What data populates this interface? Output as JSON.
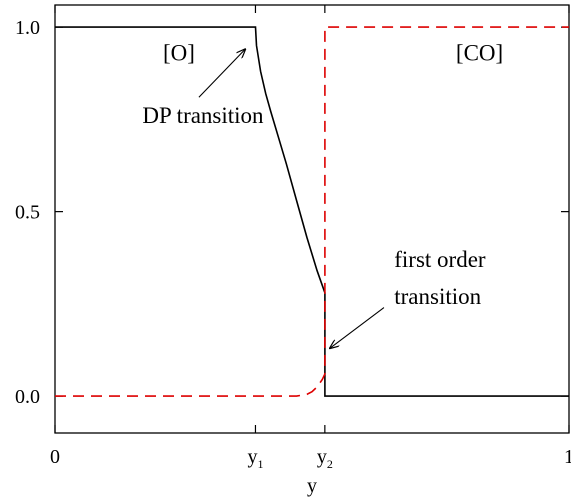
{
  "chart_data": {
    "type": "line",
    "xlabel": "y",
    "ylabel": "",
    "xlim": [
      0,
      1
    ],
    "ylim": [
      -0.1,
      1.06
    ],
    "x_ticks": [
      {
        "value": 0,
        "label": "0"
      },
      {
        "value": 0.39,
        "base": "y",
        "sub": "1"
      },
      {
        "value": 0.525,
        "base": "y",
        "sub": "2"
      },
      {
        "value": 1,
        "label": "1"
      }
    ],
    "y_ticks": [
      {
        "value": 0.0,
        "label": "0.0"
      },
      {
        "value": 0.5,
        "label": "0.5"
      },
      {
        "value": 1.0,
        "label": "1.0"
      }
    ],
    "series": [
      {
        "color": "#000000",
        "dash": "solid",
        "points": [
          [
            0,
            1.0
          ],
          [
            0.39,
            1.0
          ],
          [
            0.392,
            0.95
          ],
          [
            0.4,
            0.88
          ],
          [
            0.41,
            0.82
          ],
          [
            0.42,
            0.77
          ],
          [
            0.435,
            0.7
          ],
          [
            0.45,
            0.63
          ],
          [
            0.47,
            0.53
          ],
          [
            0.49,
            0.43
          ],
          [
            0.51,
            0.34
          ],
          [
            0.525,
            0.28
          ],
          [
            0.525,
            0.0
          ],
          [
            1,
            0.0
          ]
        ]
      },
      {
        "color": "#dd0000",
        "dash": "dashed",
        "points": [
          [
            0,
            0.0
          ],
          [
            0.47,
            0.0
          ],
          [
            0.49,
            0.005
          ],
          [
            0.5,
            0.012
          ],
          [
            0.51,
            0.025
          ],
          [
            0.52,
            0.045
          ],
          [
            0.525,
            0.06
          ],
          [
            0.525,
            1.0
          ],
          [
            1,
            1.0
          ]
        ]
      }
    ],
    "annotations": [
      {
        "text": "[O]",
        "x": 0.21,
        "y": 0.91
      },
      {
        "text": "[CO]",
        "x": 0.78,
        "y": 0.91
      },
      {
        "text": "DP transition",
        "x": 0.17,
        "y": 0.74,
        "arrow_from": [
          0.28,
          0.81
        ],
        "arrow_to": [
          0.37,
          0.94
        ]
      },
      {
        "text": "first order",
        "x": 0.66,
        "y": 0.35
      },
      {
        "text": "transition",
        "x": 0.66,
        "y": 0.25,
        "arrow_from": [
          0.64,
          0.24
        ],
        "arrow_to": [
          0.535,
          0.13
        ]
      }
    ],
    "grid": false,
    "legend": "none"
  }
}
